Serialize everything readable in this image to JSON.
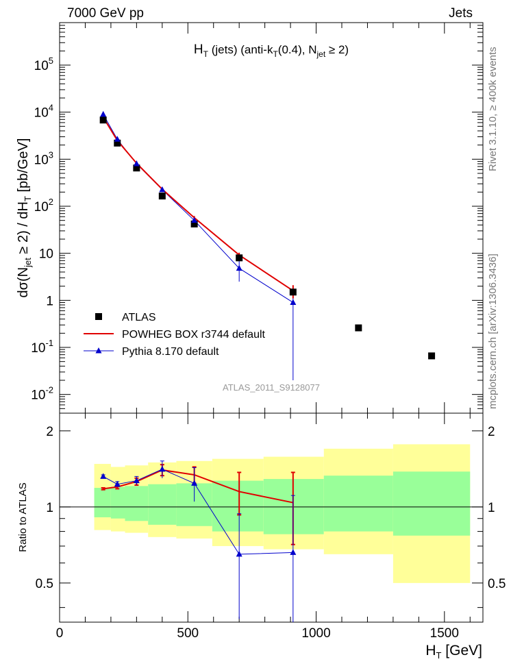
{
  "header": {
    "left": "7000 GeV pp",
    "right": "Jets"
  },
  "side_label_top": "Rivet 3.1.10, ≥ 400k events",
  "side_label_bottom": "mcplots.cern.ch [arXiv:1306.3436]",
  "watermark": "ATLAS_2011_S9128077",
  "colors": {
    "atlas": "#000000",
    "powheg": "#e00000",
    "pythia": "#0000cc",
    "band_inner": "#99ff99",
    "band_outer": "#ffff99"
  },
  "chart_data": [
    {
      "type": "line",
      "panel": "main",
      "title": "H_T (jets) (anti-k_T(0.4), N_jet ≥ 2)",
      "xlabel": "H_T [GeV]",
      "ylabel": "dσ(N_jet ≥ 2) / dH_T [pb/GeV]",
      "xlim": [
        0,
        1650
      ],
      "ylim": [
        0.004,
        800000
      ],
      "yscale": "log",
      "yticks": [
        "10^-2",
        "10^-1",
        "1",
        "10",
        "10^2",
        "10^3",
        "10^4",
        "10^5"
      ],
      "legend": {
        "placement": "lower-left"
      },
      "series": [
        {
          "name": "ATLAS",
          "style": "markers",
          "x": [
            170,
            225,
            300,
            400,
            525,
            700,
            910,
            1165,
            1450
          ],
          "y": [
            6800,
            2200,
            650,
            165,
            42,
            8,
            1.5,
            0.26,
            0.066
          ],
          "yerr": [
            0,
            0,
            0,
            0,
            0,
            1.5,
            0.55,
            0,
            0
          ]
        },
        {
          "name": "POWHEG BOX r3744 default",
          "style": "line",
          "x": [
            170,
            225,
            300,
            400,
            525,
            700,
            910
          ],
          "y": [
            7800,
            2500,
            820,
            230,
            57,
            9.2,
            1.6
          ],
          "yerr": [
            300,
            100,
            40,
            15,
            5,
            1.1,
            0.5
          ]
        },
        {
          "name": "Pythia 8.170 default",
          "style": "line-triangles",
          "x": [
            170,
            225,
            300,
            400,
            525,
            700,
            910
          ],
          "y": [
            9000,
            2650,
            800,
            225,
            50,
            4.8,
            0.9
          ],
          "yerr": [
            500,
            150,
            60,
            25,
            8,
            2.3,
            0.88
          ]
        }
      ]
    },
    {
      "type": "line",
      "panel": "ratio",
      "ylabel": "Ratio to ATLAS",
      "xlabel": "H_T [GeV]",
      "xlim": [
        0,
        1650
      ],
      "xticks": [
        0,
        500,
        1000,
        1500
      ],
      "ylim": [
        0.35,
        2.35
      ],
      "yticks": [
        0.5,
        1,
        2
      ],
      "bands": {
        "edges": [
          135,
          200,
          255,
          345,
          455,
          595,
          795,
          1030,
          1300,
          1600
        ],
        "inner_low": [
          0.91,
          0.9,
          0.88,
          0.85,
          0.84,
          0.8,
          0.78,
          0.8,
          0.77
        ],
        "inner_high": [
          1.19,
          1.2,
          1.21,
          1.23,
          1.24,
          1.27,
          1.29,
          1.33,
          1.38
        ],
        "outer_low": [
          0.81,
          0.8,
          0.79,
          0.76,
          0.75,
          0.7,
          0.68,
          0.65,
          0.5
        ],
        "outer_high": [
          1.48,
          1.44,
          1.46,
          1.5,
          1.52,
          1.55,
          1.58,
          1.7,
          1.77
        ]
      },
      "series": [
        {
          "name": "POWHEG BOX r3744 default",
          "x": [
            170,
            225,
            300,
            400,
            525,
            700,
            910
          ],
          "y": [
            1.18,
            1.2,
            1.26,
            1.4,
            1.34,
            1.15,
            1.04
          ],
          "yerr": [
            0.01,
            0.02,
            0.04,
            0.07,
            0.1,
            0.22,
            0.33
          ]
        },
        {
          "name": "Pythia 8.170 default",
          "x": [
            170,
            225,
            300,
            400,
            525,
            700,
            910
          ],
          "y": [
            1.32,
            1.23,
            1.27,
            1.41,
            1.24,
            0.65,
            0.66
          ],
          "yerr": [
            0.02,
            0.03,
            0.05,
            0.11,
            0.19,
            0.29,
            0.45
          ]
        }
      ]
    }
  ]
}
